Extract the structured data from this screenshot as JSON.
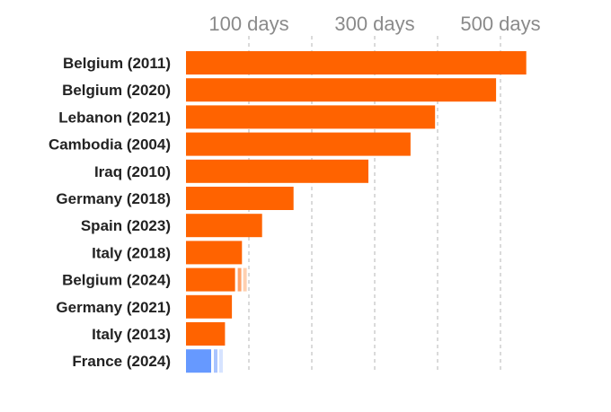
{
  "chart_data": {
    "type": "bar",
    "orientation": "horizontal",
    "title": "",
    "xlabel": "",
    "ylabel": "",
    "x_unit": "days",
    "xlim": [
      0,
      541
    ],
    "x_ticks": [
      100,
      300,
      500
    ],
    "x_tick_labels": [
      "100 days",
      "300 days",
      "500 days"
    ],
    "grid": "dashed vertical",
    "categories": [
      "Belgium (2011)",
      "Belgium (2020)",
      "Lebanon (2021)",
      "Cambodia (2004)",
      "Iraq (2010)",
      "Germany (2018)",
      "Spain (2023)",
      "Italy (2018)",
      "Belgium (2024)",
      "Germany (2021)",
      "Italy (2013)",
      "France (2024)"
    ],
    "values": [
      541,
      493,
      396,
      357,
      290,
      171,
      121,
      89,
      78,
      73,
      62,
      40
    ],
    "bar_colors": [
      "#ff6300",
      "#ff6300",
      "#ff6300",
      "#ff6300",
      "#ff6300",
      "#ff6300",
      "#ff6300",
      "#ff6300",
      "#ff6300",
      "#ff6300",
      "#ff6300",
      "#6699ff"
    ],
    "continuation_marks": {
      "Belgium (2024)": {
        "colors": [
          "#ffa36b",
          "#ffd0b0"
        ]
      },
      "France (2024)": {
        "colors": [
          "#a9c4ff",
          "#d6e3ff"
        ]
      }
    }
  }
}
